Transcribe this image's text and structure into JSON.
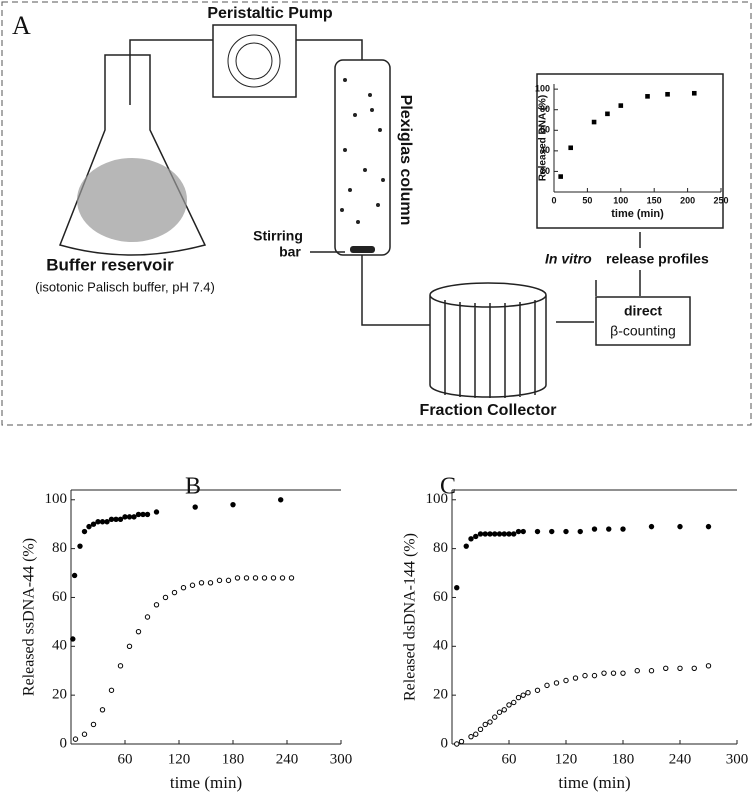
{
  "diagram": {
    "panel_label": "A",
    "pump": "Peristaltic Pump",
    "column": "Plexiglas column",
    "stirring_bar": [
      "Stirring",
      "bar"
    ],
    "reservoir": "Buffer reservoir",
    "buffer_note": "(isotonic Palisch buffer, pH 7.4)",
    "release_profiles": [
      "In vitro",
      "release profiles"
    ],
    "counting": [
      "direct",
      "β-counting"
    ],
    "collector": "Fraction Collector"
  },
  "chart_data": [
    {
      "type": "scatter",
      "y_label": "Released DNA (%)",
      "x_label": "time (min)",
      "xlim": [
        0,
        250
      ],
      "ylim": [
        0,
        105
      ],
      "xticks": [
        0,
        50,
        100,
        150,
        200,
        250
      ],
      "yticks": [
        20,
        40,
        60,
        80,
        100
      ],
      "series": [
        {
          "marker": "filled",
          "color": "#000000",
          "x": [
            10,
            25,
            60,
            80,
            100,
            140,
            170,
            210
          ],
          "values": [
            15,
            43,
            68,
            76,
            84,
            93,
            95,
            96
          ]
        }
      ]
    },
    {
      "type": "scatter",
      "panel_label": "B",
      "y_label": "Released ssDNA-44 (%)",
      "x_label": "time (min)",
      "xlim": [
        0,
        300
      ],
      "ylim": [
        0,
        104
      ],
      "xticks": [
        60,
        120,
        180,
        240,
        300
      ],
      "yticks": [
        0,
        20,
        40,
        60,
        80,
        100
      ],
      "series": [
        {
          "marker": "filled",
          "color": "#000000",
          "x": [
            2,
            4,
            10,
            15,
            20,
            25,
            30,
            35,
            40,
            45,
            50,
            55,
            60,
            65,
            70,
            75,
            80,
            85,
            95,
            138,
            180,
            233
          ],
          "values": [
            43,
            69,
            81,
            87,
            89,
            90,
            91,
            91,
            91,
            92,
            92,
            92,
            93,
            93,
            93,
            94,
            94,
            94,
            95,
            97,
            98,
            100
          ]
        },
        {
          "marker": "open",
          "color": "#000000",
          "x": [
            5,
            15,
            25,
            35,
            45,
            55,
            65,
            75,
            85,
            95,
            105,
            115,
            125,
            135,
            145,
            155,
            165,
            175,
            185,
            195,
            205,
            215,
            225,
            235,
            245
          ],
          "values": [
            2,
            4,
            8,
            14,
            22,
            32,
            40,
            46,
            52,
            57,
            60,
            62,
            64,
            65,
            66,
            66,
            67,
            67,
            68,
            68,
            68,
            68,
            68,
            68,
            68
          ]
        }
      ]
    },
    {
      "type": "scatter",
      "panel_label": "C",
      "y_label": "Released dsDNA-144 (%)",
      "x_label": "time (min)",
      "xlim": [
        0,
        300
      ],
      "ylim": [
        0,
        104
      ],
      "xticks": [
        60,
        120,
        180,
        240,
        300
      ],
      "yticks": [
        0,
        20,
        40,
        60,
        80,
        100
      ],
      "series": [
        {
          "marker": "filled",
          "color": "#000000",
          "x": [
            5,
            15,
            20,
            25,
            30,
            35,
            40,
            45,
            50,
            55,
            60,
            65,
            70,
            75,
            90,
            105,
            120,
            135,
            150,
            165,
            180,
            210,
            240,
            270
          ],
          "values": [
            64,
            81,
            84,
            85,
            86,
            86,
            86,
            86,
            86,
            86,
            86,
            86,
            87,
            87,
            87,
            87,
            87,
            87,
            88,
            88,
            88,
            89,
            89,
            89
          ]
        },
        {
          "marker": "open",
          "color": "#000000",
          "x": [
            5,
            10,
            20,
            25,
            30,
            35,
            40,
            45,
            50,
            55,
            60,
            65,
            70,
            75,
            80,
            90,
            100,
            110,
            120,
            130,
            140,
            150,
            160,
            170,
            180,
            195,
            210,
            225,
            240,
            255,
            270
          ],
          "values": [
            0,
            1,
            3,
            4,
            6,
            8,
            9,
            11,
            13,
            14,
            16,
            17,
            19,
            20,
            21,
            22,
            24,
            25,
            26,
            27,
            28,
            28,
            29,
            29,
            29,
            30,
            30,
            31,
            31,
            31,
            32
          ]
        }
      ]
    }
  ]
}
